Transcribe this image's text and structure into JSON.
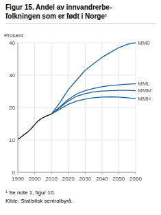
{
  "chart_data": {
    "type": "line",
    "title": "Figur 15. Andel av innvandrerbe-\nfolkningen som er født i Norge¹",
    "y_label": "Prosent",
    "annotations": [
      "¹ Se note 1, figur 10.",
      "Kilde: Statistisk sentralbyrå."
    ],
    "series": [
      {
        "x": [
          1990,
          1991,
          1992,
          1993,
          1994,
          1995,
          1996,
          1997,
          1998,
          1999,
          2000,
          2001,
          2002,
          2003,
          2004,
          2005,
          2006,
          2007,
          2008,
          2009,
          2010
        ],
        "values": [
          10.2,
          10.5,
          10.9,
          11.3,
          11.7,
          12.1,
          12.5,
          13.0,
          13.5,
          14.1,
          14.7,
          15.3,
          15.8,
          16.2,
          16.6,
          16.9,
          17.1,
          17.4,
          17.6,
          17.8,
          18.0
        ],
        "color": "#111111"
      },
      {
        "name": "MM0",
        "x": [
          2010,
          2015,
          2020,
          2025,
          2030,
          2035,
          2040,
          2045,
          2050,
          2055,
          2060
        ],
        "values": [
          18.0,
          21.5,
          25.5,
          28.5,
          31.5,
          33.5,
          35.5,
          37.0,
          38.5,
          39.5,
          40.0
        ],
        "color": "#1a5fa0"
      },
      {
        "name": "MML",
        "x": [
          2010,
          2015,
          2020,
          2025,
          2030,
          2035,
          2040,
          2045,
          2050,
          2055,
          2060
        ],
        "values": [
          18.0,
          20.2,
          22.5,
          24.2,
          25.2,
          25.9,
          26.4,
          26.8,
          27.0,
          27.2,
          27.3
        ],
        "color": "#1a5fa0"
      },
      {
        "name": "MMM",
        "x": [
          2010,
          2015,
          2020,
          2025,
          2030,
          2035,
          2040,
          2045,
          2050,
          2055,
          2060
        ],
        "values": [
          18.0,
          20.0,
          22.0,
          23.5,
          24.3,
          24.8,
          25.1,
          25.2,
          25.3,
          25.3,
          25.2
        ],
        "color": "#1a5fa0"
      },
      {
        "name": "MMH",
        "x": [
          2010,
          2015,
          2020,
          2025,
          2030,
          2035,
          2040,
          2045,
          2050,
          2055,
          2060
        ],
        "values": [
          18.0,
          19.5,
          21.0,
          22.0,
          22.6,
          23.0,
          23.2,
          23.3,
          23.2,
          23.0,
          22.8
        ],
        "color": "#1a5fa0"
      }
    ],
    "xlim": [
      1990,
      2060
    ],
    "ylim": [
      0,
      40
    ],
    "xticks": [
      1990,
      2000,
      2010,
      2020,
      2030,
      2040,
      2050,
      2060
    ],
    "yticks": [
      0,
      10,
      20,
      30,
      40
    ],
    "grid": true
  }
}
